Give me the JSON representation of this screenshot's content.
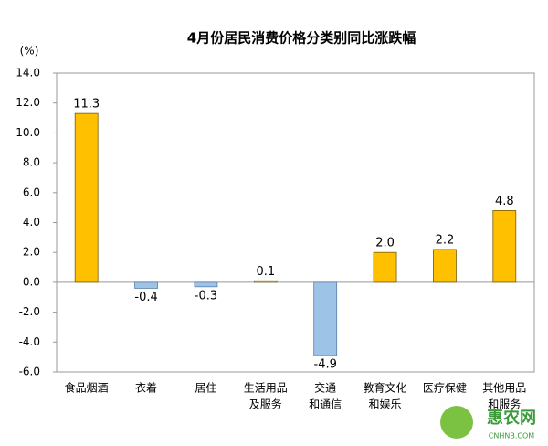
{
  "chart_data": {
    "type": "bar",
    "title": "4月份居民消费价格分类别同比涨跌幅",
    "y_unit": "(%)",
    "categories": [
      [
        "食品烟酒"
      ],
      [
        "衣着"
      ],
      [
        "居住"
      ],
      [
        "生活用品",
        "及服务"
      ],
      [
        "交通",
        "和通信"
      ],
      [
        "教育文化",
        "和娱乐"
      ],
      [
        "医疗保健"
      ],
      [
        "其他用品",
        "和服务"
      ]
    ],
    "values": [
      11.3,
      -0.4,
      -0.3,
      0.1,
      -4.9,
      2.0,
      2.2,
      4.8
    ],
    "value_labels": [
      "11.3",
      "-0.4",
      "-0.3",
      "0.1",
      "-4.9",
      "2.0",
      "2.2",
      "4.8"
    ],
    "positive_color": "#ffc000",
    "negative_color": "#9dc3e6",
    "ylim": [
      -6,
      14
    ],
    "yticks": [
      {
        "value": -6,
        "label": "-6.0"
      },
      {
        "value": -4,
        "label": "-4.0"
      },
      {
        "value": -2,
        "label": "-2.0"
      },
      {
        "value": 0,
        "label": "0.0"
      },
      {
        "value": 2,
        "label": "2.0"
      },
      {
        "value": 4,
        "label": "4.0"
      },
      {
        "value": 6,
        "label": "6.0"
      },
      {
        "value": 8,
        "label": "8.0"
      },
      {
        "value": 10,
        "label": "10.0"
      },
      {
        "value": 12,
        "label": "12.0"
      },
      {
        "value": 14,
        "label": "14.0"
      }
    ],
    "watermark": {
      "name": "惠农网",
      "site": "CNHNB.COM"
    }
  }
}
